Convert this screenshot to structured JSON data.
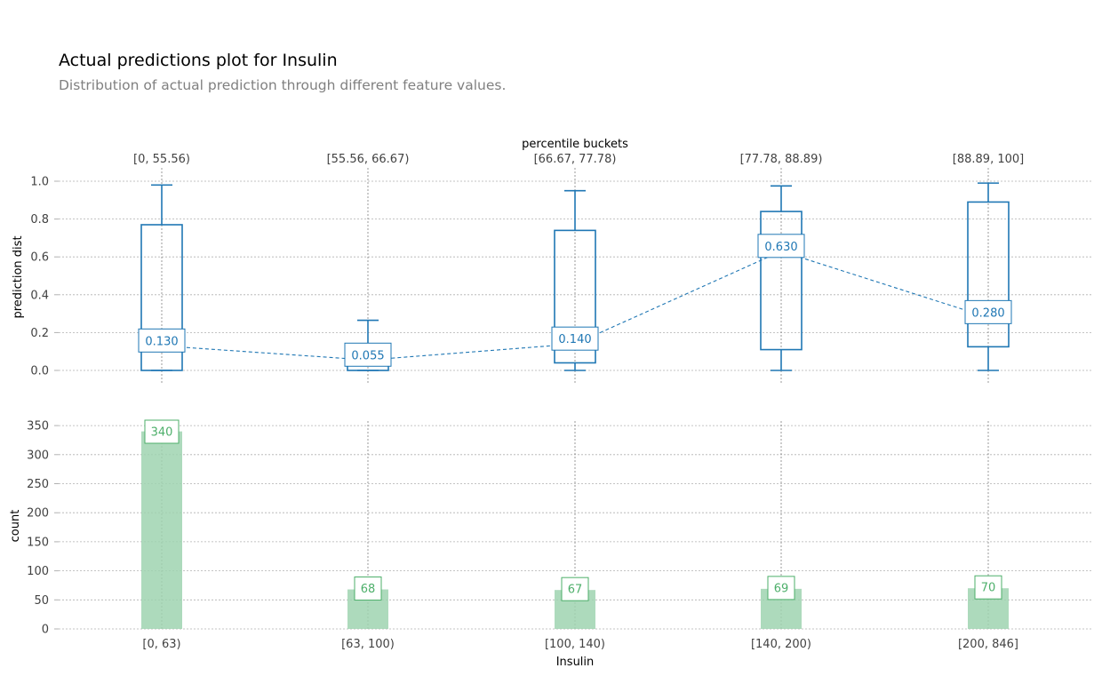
{
  "title": "Actual predictions plot for Insulin",
  "subtitle": "Distribution of actual prediction through different feature values.",
  "colors": {
    "box": "#1f77b4",
    "bar_fill": "#9fd4b0",
    "bar_label": "#4daf6a",
    "grid": "#b0b0b0",
    "text": "#424242"
  },
  "chart_data": [
    {
      "type": "box",
      "title": "",
      "top_axis_label": "percentile buckets",
      "top_tick_labels": [
        "[0, 55.56)",
        "[55.56, 66.67)",
        "[66.67, 77.78)",
        "[77.78, 88.89)",
        "[88.89, 100]"
      ],
      "ylabel": "prediction dist",
      "ylim": [
        -0.07,
        1.07
      ],
      "yticks": [
        0.0,
        0.2,
        0.4,
        0.6,
        0.8,
        1.0
      ],
      "ytick_labels": [
        "0.0",
        "0.2",
        "0.4",
        "0.6",
        "0.8",
        "1.0"
      ],
      "grid": true,
      "boxes": [
        {
          "whisker_low": 0.0,
          "q1": 0.0,
          "median": 0.13,
          "q3": 0.77,
          "whisker_high": 0.98
        },
        {
          "whisker_low": 0.0,
          "q1": 0.0,
          "median": 0.055,
          "q3": 0.12,
          "whisker_high": 0.265
        },
        {
          "whisker_low": 0.0,
          "q1": 0.04,
          "median": 0.14,
          "q3": 0.74,
          "whisker_high": 0.95
        },
        {
          "whisker_low": 0.0,
          "q1": 0.11,
          "median": 0.63,
          "q3": 0.84,
          "whisker_high": 0.975
        },
        {
          "whisker_low": 0.0,
          "q1": 0.125,
          "median": 0.28,
          "q3": 0.89,
          "whisker_high": 0.99
        }
      ],
      "median_labels": [
        "0.130",
        "0.055",
        "0.140",
        "0.630",
        "0.280"
      ]
    },
    {
      "type": "bar",
      "title": "",
      "categories": [
        "[0, 63)",
        "[63, 100)",
        "[100, 140)",
        "[140, 200)",
        "[200, 846]"
      ],
      "values": [
        340,
        68,
        67,
        69,
        70
      ],
      "value_labels": [
        "340",
        "68",
        "67",
        "69",
        "70"
      ],
      "xlabel": "Insulin",
      "ylabel": "count",
      "ylim": [
        0,
        357
      ],
      "yticks": [
        0,
        50,
        100,
        150,
        200,
        250,
        300,
        350
      ],
      "ytick_labels": [
        "0",
        "50",
        "100",
        "150",
        "200",
        "250",
        "300",
        "350"
      ],
      "grid": true
    }
  ]
}
